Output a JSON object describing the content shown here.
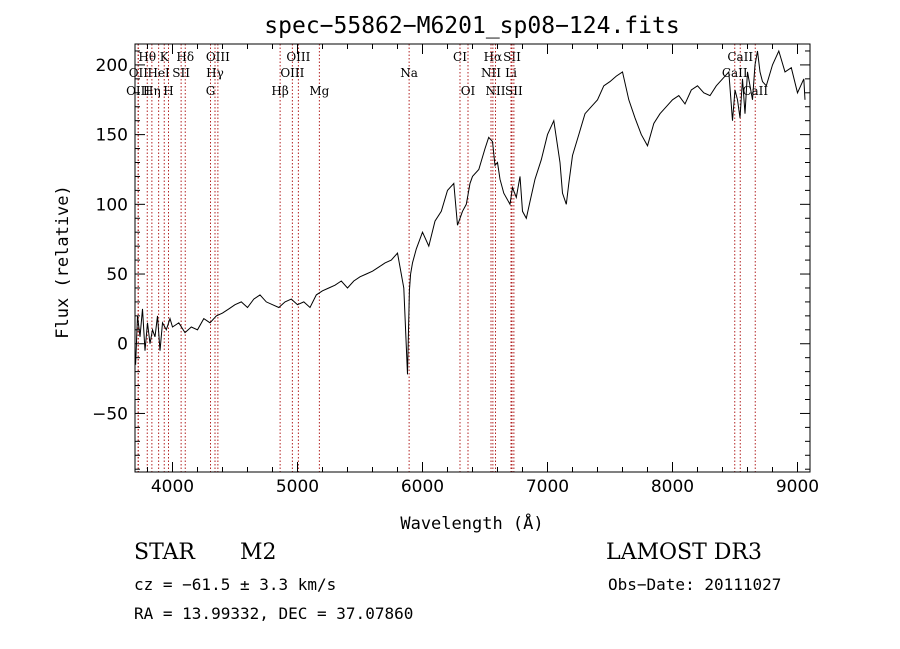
{
  "chart_data": {
    "type": "line",
    "title": "spec−55862−M6201_sp08−124.fits",
    "xlabel": "Wavelength (Å)",
    "ylabel": "Flux (relative)",
    "xlim": [
      3700,
      9100
    ],
    "ylim": [
      -92,
      215
    ],
    "x_ticks": [
      4000,
      5000,
      6000,
      7000,
      8000,
      9000
    ],
    "y_ticks": [
      -50,
      0,
      50,
      100,
      150,
      200
    ],
    "grid": false,
    "colors": {
      "spectrum": "#000000",
      "line_markers": "#b22222",
      "axes": "#000000"
    },
    "series": [
      {
        "name": "flux",
        "x": [
          3705,
          3720,
          3740,
          3760,
          3780,
          3800,
          3820,
          3840,
          3860,
          3880,
          3900,
          3920,
          3950,
          3980,
          4000,
          4050,
          4100,
          4150,
          4200,
          4250,
          4300,
          4350,
          4400,
          4450,
          4500,
          4550,
          4600,
          4650,
          4700,
          4750,
          4800,
          4850,
          4900,
          4950,
          5000,
          5050,
          5100,
          5150,
          5200,
          5250,
          5300,
          5350,
          5400,
          5450,
          5500,
          5550,
          5600,
          5650,
          5700,
          5750,
          5800,
          5850,
          5880,
          5895,
          5905,
          5920,
          5950,
          6000,
          6050,
          6100,
          6150,
          6200,
          6250,
          6280,
          6300,
          6320,
          6350,
          6380,
          6400,
          6450,
          6500,
          6530,
          6560,
          6580,
          6600,
          6620,
          6650,
          6700,
          6720,
          6750,
          6780,
          6800,
          6830,
          6860,
          6900,
          6950,
          7000,
          7050,
          7100,
          7120,
          7150,
          7170,
          7200,
          7250,
          7300,
          7350,
          7400,
          7450,
          7500,
          7550,
          7600,
          7650,
          7700,
          7750,
          7800,
          7850,
          7900,
          7950,
          8000,
          8050,
          8100,
          8150,
          8200,
          8250,
          8300,
          8350,
          8400,
          8450,
          8480,
          8500,
          8520,
          8540,
          8560,
          8580,
          8600,
          8640,
          8660,
          8680,
          8700,
          8720,
          8750,
          8800,
          8850,
          8900,
          8950,
          9000,
          9050,
          9060
        ],
        "values": [
          -15,
          20,
          5,
          25,
          -5,
          15,
          0,
          10,
          5,
          20,
          -5,
          15,
          10,
          18,
          12,
          15,
          8,
          12,
          10,
          18,
          15,
          20,
          22,
          25,
          28,
          30,
          26,
          32,
          35,
          30,
          28,
          26,
          30,
          32,
          28,
          30,
          26,
          35,
          38,
          40,
          42,
          45,
          40,
          45,
          48,
          50,
          52,
          55,
          58,
          60,
          65,
          40,
          -22,
          38,
          50,
          58,
          68,
          80,
          70,
          88,
          95,
          110,
          115,
          85,
          90,
          95,
          100,
          115,
          120,
          125,
          140,
          148,
          145,
          128,
          130,
          118,
          108,
          100,
          112,
          105,
          120,
          95,
          90,
          102,
          118,
          132,
          150,
          160,
          130,
          108,
          100,
          115,
          135,
          150,
          165,
          170,
          175,
          185,
          188,
          192,
          195,
          175,
          162,
          150,
          142,
          158,
          165,
          170,
          175,
          178,
          172,
          182,
          185,
          180,
          178,
          185,
          190,
          195,
          160,
          182,
          175,
          162,
          190,
          165,
          195,
          175,
          200,
          210,
          195,
          188,
          185,
          200,
          210,
          195,
          198,
          180,
          190,
          175
        ]
      }
    ],
    "line_markers": [
      {
        "label": "Hθ",
        "wavelength": 3798,
        "row": 1
      },
      {
        "label": "K",
        "wavelength": 3934,
        "row": 1
      },
      {
        "label": "Hδ",
        "wavelength": 4102,
        "row": 1
      },
      {
        "label": "OIII",
        "wavelength": 4363,
        "row": 1
      },
      {
        "label": "OIII",
        "wavelength": 5007,
        "row": 1
      },
      {
        "label": "CI",
        "wavelength": 6300,
        "row": 1
      },
      {
        "label": "Hα",
        "wavelength": 6563,
        "row": 1
      },
      {
        "label": "SII",
        "wavelength": 6716,
        "row": 1
      },
      {
        "label": "CaII",
        "wavelength": 8542,
        "row": 1
      },
      {
        "label": "OII",
        "wavelength": 3727,
        "row": 2
      },
      {
        "label": "HeI",
        "wavelength": 3889,
        "row": 2
      },
      {
        "label": "SII",
        "wavelength": 4069,
        "row": 2
      },
      {
        "label": "Hγ",
        "wavelength": 4340,
        "row": 2
      },
      {
        "label": "OIII",
        "wavelength": 4959,
        "row": 2
      },
      {
        "label": "Na",
        "wavelength": 5893,
        "row": 2
      },
      {
        "label": "NII",
        "wavelength": 6548,
        "row": 2
      },
      {
        "label": "Li",
        "wavelength": 6708,
        "row": 2
      },
      {
        "label": "CaII",
        "wavelength": 8498,
        "row": 2
      },
      {
        "label": "OIII",
        "wavelength": 3725,
        "row": 3
      },
      {
        "label": "Hη",
        "wavelength": 3835,
        "row": 3
      },
      {
        "label": "H",
        "wavelength": 3968,
        "row": 3
      },
      {
        "label": "G",
        "wavelength": 4304,
        "row": 3
      },
      {
        "label": "Hβ",
        "wavelength": 4861,
        "row": 3
      },
      {
        "label": "Mg",
        "wavelength": 5175,
        "row": 3
      },
      {
        "label": "OI",
        "wavelength": 6364,
        "row": 3
      },
      {
        "label": "NII",
        "wavelength": 6584,
        "row": 3
      },
      {
        "label": "SII",
        "wavelength": 6731,
        "row": 3
      },
      {
        "label": "CaII",
        "wavelength": 8662,
        "row": 3
      }
    ]
  },
  "info": {
    "object_class": "STAR",
    "subclass": "M2",
    "survey": "LAMOST DR3",
    "redshift": "cz = −61.5 ± 3.3 km/s",
    "obs_date": "Obs−Date: 20111027",
    "coords": "RA =  13.99332, DEC =  37.07860"
  }
}
